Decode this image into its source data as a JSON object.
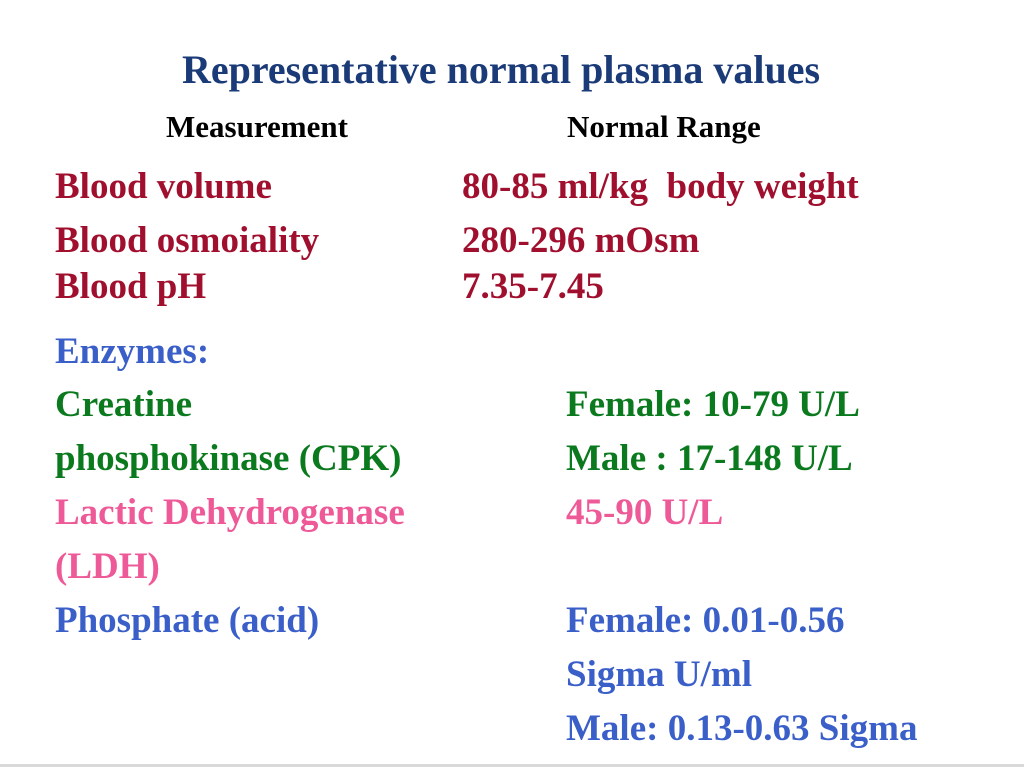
{
  "slide": {
    "title": "Representative normal plasma values",
    "headers": {
      "measurement": "Measurement",
      "range": "Normal Range"
    },
    "blood_rows": [
      {
        "name": "Blood volume",
        "value": "80-85 ml/kg  body weight"
      },
      {
        "name": "Blood osmoiality",
        "value": "280-296 mOsm"
      },
      {
        "name": "Blood pH",
        "value": "7.35-7.45"
      }
    ],
    "enzymes_heading": "Enzymes:",
    "cpk": {
      "name_line1": "Creatine",
      "name_line2": "phosphokinase (CPK)",
      "female": "Female: 10-79 U/L",
      "male": "Male : 17-148 U/L"
    },
    "ldh": {
      "name_line1": "Lactic Dehydrogenase",
      "name_line2": "(LDH)",
      "value": "45-90 U/L"
    },
    "phosphate": {
      "name": "Phosphate (acid)",
      "female_line1": "Female: 0.01-0.56",
      "female_line2": "Sigma U/ml",
      "male": "Male: 0.13-0.63 Sigma"
    },
    "colors": {
      "title": "#1a3a78",
      "blood": "#a0102e",
      "enzymes": "#3a5fc8",
      "cpk": "#0b7a1e",
      "ldh": "#ee5a98"
    }
  }
}
